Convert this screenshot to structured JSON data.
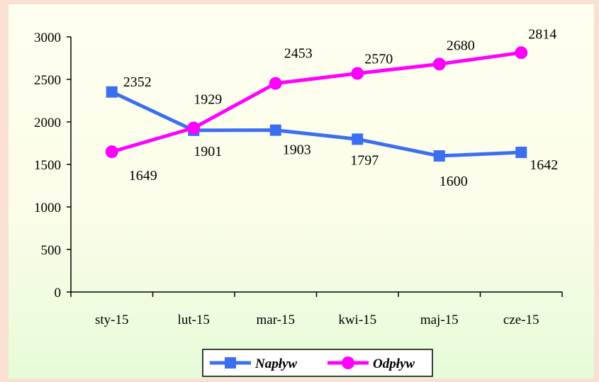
{
  "chart_data": {
    "type": "line",
    "categories": [
      "sty-15",
      "lut-15",
      "mar-15",
      "kwi-15",
      "maj-15",
      "cze-15"
    ],
    "series": [
      {
        "name": "Napływ",
        "values": [
          2352,
          1901,
          1903,
          1797,
          1600,
          1642
        ],
        "color": "#3c6ef0",
        "marker": "square"
      },
      {
        "name": "Odpływ",
        "values": [
          1649,
          1929,
          2453,
          2570,
          2680,
          2814
        ],
        "color": "#ff00ff",
        "marker": "circle"
      }
    ],
    "title": "",
    "xlabel": "",
    "ylabel": "",
    "ylim": [
      0,
      3000
    ],
    "yticks": [
      0,
      500,
      1000,
      1500,
      2000,
      2500,
      3000
    ],
    "grid": false,
    "legend_position": "bottom-center",
    "data_labels": true
  },
  "colors": {
    "outer_background": "#fadfd3",
    "plot_background_top": "#fffff0",
    "plot_background_bottom": "#e6fbd8"
  }
}
